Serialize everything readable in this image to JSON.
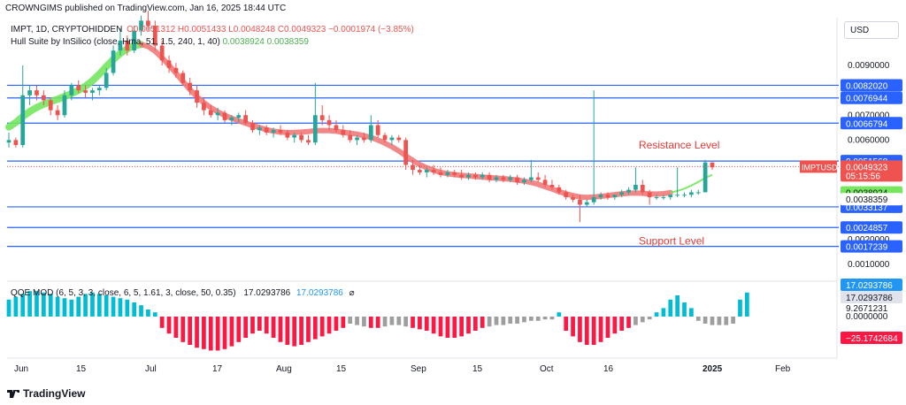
{
  "header": {
    "published": "CROWNGIMS published on TradingView.com, Jan 16, 2025 18:44 UTC",
    "symbol_line": "IMPT, 1D, CRYPTOHIDDEN",
    "ohlc": "O0.0051312 H0.0051433 L0.0048248 C0.0049323 −0.0001974 (−3.85%)",
    "hull_line": "Hull Suite by InSilico (close, Hma, 51, 1.5, 240, 1, 40)",
    "hull_val1": "0.0038924",
    "hull_val2": "0.0038359",
    "qqe_line": "QQE MOD (6, 5, 3, 3, close, 6, 5, 1.61, 3, close, 50, 0.35)",
    "qqe_val1": "17.0293786",
    "qqe_val2": "17.0293786",
    "qqe_sym": "⌀"
  },
  "currency": "USD",
  "brand": "TradingView",
  "chart_data": {
    "type": "candlestick",
    "x_ticks": [
      "Jun",
      "15",
      "Jul",
      "17",
      "Aug",
      "15",
      "Sep",
      "15",
      "Oct",
      "16",
      "2025",
      "Feb"
    ],
    "price_axis_ticks": [
      "0.0090000",
      "0.0070000",
      "0.0060000",
      "0.0020000",
      "0.0010000"
    ],
    "horizontal_levels": [
      {
        "label": "0.0082020",
        "value": 0.008202
      },
      {
        "label": "0.0076944",
        "value": 0.0076944
      },
      {
        "label": "0.0066794",
        "value": 0.0066794
      },
      {
        "label": "0.0051568",
        "value": 0.0051568
      },
      {
        "label": "0.0033137",
        "value": 0.0033137
      },
      {
        "label": "0.0024857",
        "value": 0.0024857
      },
      {
        "label": "0.0017239",
        "value": 0.0017239
      }
    ],
    "annotations": [
      {
        "text": "Resistance Level",
        "value": 0.0058
      },
      {
        "text": "Support Level",
        "value": 0.00195
      }
    ],
    "last_price": {
      "symbol": "IMPTUSD",
      "value": "0.0049323",
      "countdown": "05:15:56"
    },
    "hull_labels": [
      "0.0038924",
      "0.0038359"
    ],
    "qqe_axis_labels": [
      "17.0293786",
      "17.0293786",
      "9.2671231",
      "0.0000000",
      "−25.1742684"
    ],
    "candles": [
      [
        0.0059,
        0.0063,
        0.0057,
        0.006
      ],
      [
        0.006,
        0.0061,
        0.0057,
        0.0058
      ],
      [
        0.0058,
        0.009,
        0.0057,
        0.0078
      ],
      [
        0.0078,
        0.0082,
        0.0074,
        0.008
      ],
      [
        0.008,
        0.0082,
        0.0076,
        0.0078
      ],
      [
        0.0078,
        0.008,
        0.0074,
        0.0076
      ],
      [
        0.0076,
        0.0077,
        0.007,
        0.0072
      ],
      [
        0.0072,
        0.0074,
        0.0068,
        0.007
      ],
      [
        0.007,
        0.008,
        0.0069,
        0.0078
      ],
      [
        0.0078,
        0.0083,
        0.0076,
        0.0082
      ],
      [
        0.0082,
        0.0084,
        0.0079,
        0.008
      ],
      [
        0.008,
        0.0082,
        0.0077,
        0.0079
      ],
      [
        0.0079,
        0.0081,
        0.0076,
        0.008
      ],
      [
        0.008,
        0.0082,
        0.0078,
        0.0081
      ],
      [
        0.0081,
        0.0089,
        0.008,
        0.0087
      ],
      [
        0.0087,
        0.0098,
        0.0086,
        0.0096
      ],
      [
        0.0096,
        0.0105,
        0.0094,
        0.01
      ],
      [
        0.01,
        0.0102,
        0.0094,
        0.0096
      ],
      [
        0.0096,
        0.0106,
        0.0095,
        0.0104
      ],
      [
        0.0104,
        0.011,
        0.0102,
        0.0108
      ],
      [
        0.0108,
        0.0112,
        0.0104,
        0.0106
      ],
      [
        0.0106,
        0.0108,
        0.0096,
        0.0098
      ],
      [
        0.0098,
        0.01,
        0.009,
        0.0092
      ],
      [
        0.0092,
        0.0094,
        0.0087,
        0.0089
      ],
      [
        0.0089,
        0.0091,
        0.0085,
        0.0087
      ],
      [
        0.0087,
        0.0088,
        0.0082,
        0.0083
      ],
      [
        0.0083,
        0.0085,
        0.0078,
        0.008
      ],
      [
        0.008,
        0.0082,
        0.0073,
        0.0075
      ],
      [
        0.0075,
        0.0077,
        0.007,
        0.0072
      ],
      [
        0.0072,
        0.0074,
        0.0069,
        0.007
      ],
      [
        0.007,
        0.0073,
        0.0068,
        0.0071
      ],
      [
        0.0071,
        0.0072,
        0.0067,
        0.0068
      ],
      [
        0.0068,
        0.007,
        0.0066,
        0.0069
      ],
      [
        0.0069,
        0.0071,
        0.0067,
        0.007
      ],
      [
        0.007,
        0.0072,
        0.0066,
        0.0067
      ],
      [
        0.0067,
        0.0068,
        0.0063,
        0.0064
      ],
      [
        0.0064,
        0.0066,
        0.0062,
        0.0065
      ],
      [
        0.0065,
        0.0066,
        0.0062,
        0.0063
      ],
      [
        0.0063,
        0.0065,
        0.0061,
        0.0064
      ],
      [
        0.0064,
        0.0066,
        0.0062,
        0.0063
      ],
      [
        0.0063,
        0.0064,
        0.006,
        0.0061
      ],
      [
        0.0061,
        0.0063,
        0.0059,
        0.0062
      ],
      [
        0.0062,
        0.0063,
        0.0059,
        0.006
      ],
      [
        0.006,
        0.0062,
        0.0058,
        0.0059
      ],
      [
        0.0059,
        0.0083,
        0.0058,
        0.007
      ],
      [
        0.007,
        0.0074,
        0.0066,
        0.0068
      ],
      [
        0.0068,
        0.007,
        0.0064,
        0.0066
      ],
      [
        0.0066,
        0.0068,
        0.0063,
        0.0064
      ],
      [
        0.0064,
        0.0066,
        0.0061,
        0.0062
      ],
      [
        0.0062,
        0.0064,
        0.0059,
        0.006
      ],
      [
        0.006,
        0.0062,
        0.0058,
        0.0061
      ],
      [
        0.0061,
        0.0063,
        0.0059,
        0.006
      ],
      [
        0.006,
        0.007,
        0.0059,
        0.0066
      ],
      [
        0.0066,
        0.0068,
        0.0061,
        0.0062
      ],
      [
        0.0062,
        0.0063,
        0.0059,
        0.006
      ],
      [
        0.006,
        0.0062,
        0.0058,
        0.0061
      ],
      [
        0.0061,
        0.0062,
        0.0059,
        0.006
      ],
      [
        0.006,
        0.0061,
        0.0048,
        0.005
      ],
      [
        0.005,
        0.0052,
        0.0046,
        0.0048
      ],
      [
        0.0048,
        0.005,
        0.0046,
        0.0047
      ],
      [
        0.0047,
        0.0049,
        0.0045,
        0.0048
      ],
      [
        0.0048,
        0.005,
        0.0046,
        0.0047
      ],
      [
        0.0047,
        0.0049,
        0.0045,
        0.0046
      ],
      [
        0.0046,
        0.0048,
        0.0045,
        0.0047
      ],
      [
        0.0047,
        0.0048,
        0.0045,
        0.0046
      ],
      [
        0.0046,
        0.0048,
        0.0044,
        0.0045
      ],
      [
        0.0045,
        0.0047,
        0.0044,
        0.0046
      ],
      [
        0.0046,
        0.0047,
        0.0044,
        0.0045
      ],
      [
        0.0045,
        0.0047,
        0.0044,
        0.0046
      ],
      [
        0.0046,
        0.0047,
        0.0043,
        0.0044
      ],
      [
        0.0044,
        0.0046,
        0.0043,
        0.0045
      ],
      [
        0.0045,
        0.0046,
        0.0043,
        0.0044
      ],
      [
        0.0044,
        0.0046,
        0.0043,
        0.0045
      ],
      [
        0.0045,
        0.0046,
        0.0042,
        0.0043
      ],
      [
        0.0043,
        0.0045,
        0.0042,
        0.0044
      ],
      [
        0.0044,
        0.0052,
        0.0043,
        0.0045
      ],
      [
        0.0045,
        0.0047,
        0.0043,
        0.0044
      ],
      [
        0.0044,
        0.0046,
        0.0041,
        0.0042
      ],
      [
        0.0042,
        0.0044,
        0.004,
        0.0041
      ],
      [
        0.0041,
        0.0042,
        0.0038,
        0.0039
      ],
      [
        0.0039,
        0.004,
        0.0036,
        0.0037
      ],
      [
        0.0037,
        0.0038,
        0.0035,
        0.0036
      ],
      [
        0.0036,
        0.0038,
        0.0027,
        0.0034
      ],
      [
        0.0034,
        0.0036,
        0.0033,
        0.0035
      ],
      [
        0.0035,
        0.008,
        0.0034,
        0.0037
      ],
      [
        0.0037,
        0.0039,
        0.0036,
        0.0038
      ],
      [
        0.0038,
        0.0039,
        0.0036,
        0.0037
      ],
      [
        0.0037,
        0.0038,
        0.0036,
        0.0038
      ],
      [
        0.0038,
        0.004,
        0.0037,
        0.0039
      ],
      [
        0.0039,
        0.0041,
        0.0038,
        0.004
      ],
      [
        0.004,
        0.0049,
        0.0039,
        0.0042
      ],
      [
        0.0042,
        0.0044,
        0.0038,
        0.0039
      ],
      [
        0.0039,
        0.004,
        0.0034,
        0.0037
      ],
      [
        0.0037,
        0.0038,
        0.0036,
        0.0037
      ],
      [
        0.0037,
        0.0038,
        0.0036,
        0.0037
      ],
      [
        0.0037,
        0.0038,
        0.0036,
        0.0038
      ],
      [
        0.0038,
        0.0049,
        0.0037,
        0.0038
      ],
      [
        0.0038,
        0.0039,
        0.0037,
        0.0038
      ],
      [
        0.0038,
        0.004,
        0.0037,
        0.0039
      ],
      [
        0.0039,
        0.004,
        0.0038,
        0.0039
      ],
      [
        0.0039,
        0.0052,
        0.0039,
        0.0051
      ],
      [
        0.0051,
        0.0051,
        0.0048,
        0.0049
      ]
    ],
    "qqe_values": [
      12,
      14,
      16,
      18,
      18,
      17,
      16,
      14,
      13,
      12,
      14,
      16,
      17,
      16,
      15,
      14,
      13,
      12,
      10,
      8,
      5,
      3,
      -8,
      -12,
      -15,
      -18,
      -20,
      -22,
      -23,
      -24,
      -24,
      -23,
      -21,
      -18,
      -15,
      -12,
      -10,
      -12,
      -15,
      -18,
      -20,
      -21,
      -20,
      -18,
      -16,
      -14,
      -12,
      -10,
      -8,
      -5,
      -6,
      -7,
      -8,
      -8,
      -7,
      -6,
      -6,
      -7,
      -8,
      -9,
      -10,
      -12,
      -14,
      -15,
      -15,
      -14,
      -12,
      -10,
      -8,
      -7,
      -6,
      -6,
      -5,
      -5,
      -4,
      -3,
      -3,
      -2,
      -2,
      3,
      -10,
      -14,
      -18,
      -20,
      -20,
      -18,
      -15,
      -12,
      -10,
      -8,
      -6,
      -4,
      -2,
      3,
      6,
      12,
      15,
      10,
      6,
      -3,
      -5,
      -6,
      -6,
      -6,
      -5,
      12,
      17
    ]
  }
}
